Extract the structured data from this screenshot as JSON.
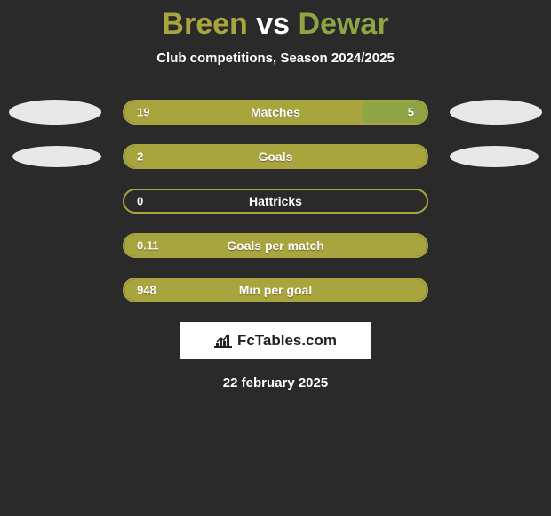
{
  "title": {
    "player1": "Breen",
    "vs": "vs",
    "player2": "Dewar",
    "player1_color": "#a9a53e",
    "player2_color": "#8fa545"
  },
  "subtitle": "Club competitions, Season 2024/2025",
  "bars": {
    "outer_width": 344,
    "border_color": "#a9a53e",
    "left_color": "#a9a53e",
    "right_color": "#8fa545"
  },
  "stats": [
    {
      "label": "Matches",
      "left_value": "19",
      "right_value": "5",
      "left_pct": 79,
      "right_pct": 21,
      "show_left_ellipse": true,
      "show_right_ellipse": true,
      "ellipse_size": "normal"
    },
    {
      "label": "Goals",
      "left_value": "2",
      "right_value": "",
      "left_pct": 100,
      "right_pct": 0,
      "show_left_ellipse": true,
      "show_right_ellipse": true,
      "ellipse_size": "small"
    },
    {
      "label": "Hattricks",
      "left_value": "0",
      "right_value": "",
      "left_pct": 0,
      "right_pct": 0,
      "show_left_ellipse": false,
      "show_right_ellipse": false,
      "ellipse_size": "normal"
    },
    {
      "label": "Goals per match",
      "left_value": "0.11",
      "right_value": "",
      "left_pct": 100,
      "right_pct": 0,
      "show_left_ellipse": false,
      "show_right_ellipse": false,
      "ellipse_size": "normal"
    },
    {
      "label": "Min per goal",
      "left_value": "948",
      "right_value": "",
      "left_pct": 100,
      "right_pct": 0,
      "show_left_ellipse": false,
      "show_right_ellipse": false,
      "ellipse_size": "normal"
    }
  ],
  "logo": {
    "text": "FcTables.com",
    "icon_color": "#222222",
    "background": "#ffffff"
  },
  "date": "22 february 2025",
  "background_color": "#2a2a2a"
}
